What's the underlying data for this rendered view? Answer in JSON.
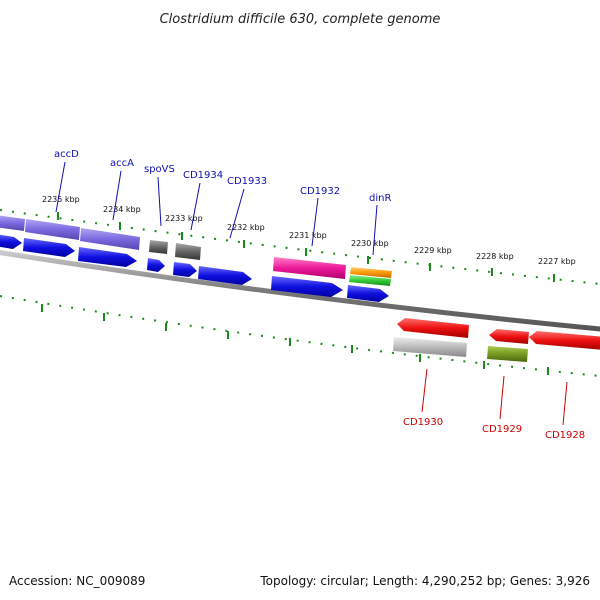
{
  "title": "Clostridium difficile 630, complete genome",
  "footer": {
    "accession": "Accession: NC_009089",
    "topology": "Topology: circular; Length: 4,290,252 bp; Genes: 3,926"
  },
  "scale": {
    "unit": "kbp",
    "tick_labels": [
      "2235 kbp",
      "2234 kbp",
      "2233 kbp",
      "2232 kbp",
      "2231 kbp",
      "2230 kbp",
      "2229 kbp",
      "2228 kbp",
      "2227 kbp"
    ]
  },
  "genes_forward": [
    {
      "name": "accD",
      "color": "#1010b0"
    },
    {
      "name": "accA",
      "color": "#1010b0"
    },
    {
      "name": "spoVS",
      "color": "#1010b0"
    },
    {
      "name": "CD1934",
      "color": "#1010b0"
    },
    {
      "name": "CD1933",
      "color": "#1010b0"
    },
    {
      "name": "CD1932",
      "color": "#1010b0"
    },
    {
      "name": "dinR",
      "color": "#1010b0"
    }
  ],
  "genes_reverse": [
    {
      "name": "CD1930",
      "color": "#cc0000"
    },
    {
      "name": "CD1929",
      "color": "#cc0000"
    },
    {
      "name": "CD1928",
      "color": "#cc0000"
    }
  ],
  "colors": {
    "backbone": "#888888",
    "tick": "#1a8a1a",
    "cds_blue": "#1010e0",
    "cds_red": "#ee1010",
    "cog_purple": "#7a6adf",
    "cog_grey": "#666666",
    "cog_magenta": "#ee1a9a",
    "cog_orange": "#ff9a00",
    "cog_green": "#33cc33",
    "cog_silver": "#bbbbbb",
    "cog_olive": "#779922"
  }
}
